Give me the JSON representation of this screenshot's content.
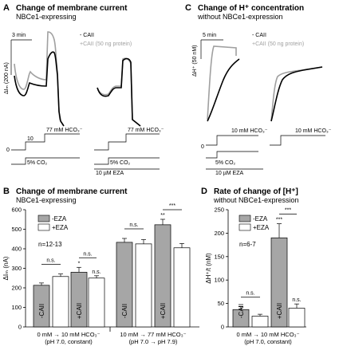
{
  "colors": {
    "black": "#000000",
    "gray": "#a0a0a0",
    "bar_gray": "#a6a6a6",
    "bar_white": "#ffffff"
  },
  "panels": {
    "A": {
      "letter": "A",
      "title": "Change of membrane current",
      "subtitle": "NBCe1-expressing",
      "scale_time": "3 min",
      "scale_y": "ΔIₘ (200 nA)",
      "legend_black": "- CAII",
      "legend_gray": "+CAII (50 ng protein)",
      "hco3_label": "77 mM HCO₃⁻",
      "hco3_label2": "77 mM HCO₃⁻",
      "step_10": "10",
      "step_0": "0",
      "co2_label": "5% CO₂",
      "co2_label2": "5% CO₂",
      "eza_label": "10 µM EZA"
    },
    "C": {
      "letter": "C",
      "title": "Change of H⁺ concentration",
      "subtitle": "without NBCe1-expression",
      "scale_time": "5 min",
      "scale_y": "ΔH⁺ (50 nM)",
      "legend_black": "- CAII",
      "legend_gray": "+CAII (50 ng protein)",
      "hco3_label": "10 mM HCO₃⁻",
      "hco3_label2": "10 mM HCO₃⁻",
      "step_0": "0",
      "co2_label": "5% CO₂",
      "eza_label": "10 µM EZA"
    },
    "B": {
      "letter": "B",
      "title": "Change of membrane current",
      "subtitle": "NBCe1-expressing"
    },
    "D": {
      "letter": "D",
      "title": "Rate of change of [H⁺]",
      "subtitle": "without NBCe1-expression"
    }
  },
  "chart_data": [
    {
      "panel": "B",
      "type": "bar",
      "ylabel": "ΔIₘ (nA)",
      "ylim": [
        0,
        600
      ],
      "yticks": [
        0,
        100,
        200,
        300,
        400,
        500,
        600
      ],
      "legend": [
        "-EZA",
        "+EZA"
      ],
      "n_label": "n=12-13",
      "bars": [
        {
          "label": "-CAII",
          "value": 213,
          "err": 12,
          "color": "gray"
        },
        {
          "label": "",
          "value": 258,
          "err": 13,
          "color": "white"
        },
        {
          "label": "+CAII",
          "value": 280,
          "err": 25,
          "color": "gray"
        },
        {
          "label": "",
          "value": 250,
          "err": 12,
          "color": "white"
        },
        {
          "label": "-CAII",
          "value": 433,
          "err": 20,
          "color": "gray"
        },
        {
          "label": "",
          "value": 425,
          "err": 22,
          "color": "white"
        },
        {
          "label": "+CAII",
          "value": 523,
          "err": 28,
          "color": "gray"
        },
        {
          "label": "",
          "value": 405,
          "err": 22,
          "color": "white"
        }
      ],
      "annotations": [
        "n.s.",
        "n.s.",
        "*",
        "n.s.",
        "n.s.",
        "n.s.",
        "**",
        "***"
      ],
      "groups": [
        {
          "line1": "0 mM → 10 mM HCO₃⁻",
          "line2": "(pH 7.0, constant)"
        },
        {
          "line1": "10 mM → 77 mM HCO₃⁻",
          "line2": "(pH 7.0 → pH 7.9)"
        }
      ]
    },
    {
      "panel": "D",
      "type": "bar",
      "ylabel": "ΔH⁺/t (nM)",
      "ylim": [
        0,
        250
      ],
      "yticks": [
        0,
        50,
        100,
        150,
        200,
        250
      ],
      "legend": [
        "-EZA",
        "+EZA"
      ],
      "n_label": "n=6-7",
      "bars": [
        {
          "label": "-CAII",
          "value": 37,
          "err": 6,
          "color": "gray"
        },
        {
          "label": "",
          "value": 23,
          "err": 4,
          "color": "white"
        },
        {
          "label": "+CAII",
          "value": 190,
          "err": 30,
          "color": "gray"
        },
        {
          "label": "",
          "value": 40,
          "err": 9,
          "color": "white"
        }
      ],
      "annotations": [
        "n.s.",
        "***",
        "***",
        "n.s."
      ],
      "groups": [
        {
          "line1": "0 mM → 10 mM HCO₃⁻",
          "line2": "(pH 7.0, constant)"
        }
      ]
    }
  ]
}
